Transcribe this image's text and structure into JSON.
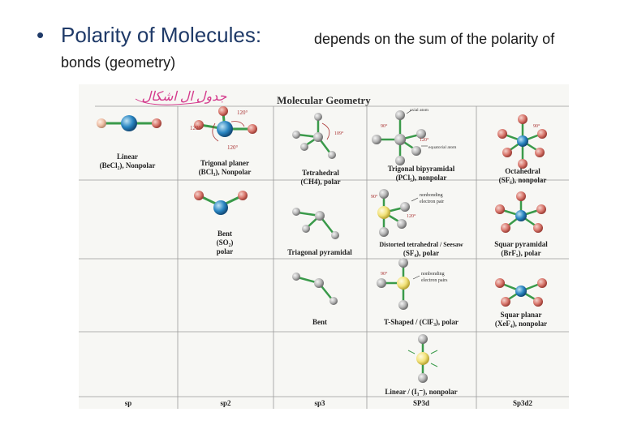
{
  "slide": {
    "bullet": "•",
    "title_main": "Polarity of Molecules:",
    "title_sub": "depends on the sum of the polarity of",
    "title_line2": "bonds (geometry)"
  },
  "figure": {
    "title": "Molecular Geometry",
    "handwritten": "جدول ال اشكال",
    "cells": [
      {
        "name": "Linear",
        "formula": "(BeCl₂), Nonpolar"
      },
      {
        "name": "Trigonal planer",
        "formula": "(BCl₃), Nonpolar"
      },
      {
        "name": "Tetrahedral",
        "formula": "(CH4), polar"
      },
      {
        "name": "Trigonal bipyramidal",
        "formula": "(PCl₅), nonpolar"
      },
      {
        "name": "Octahedral",
        "formula": "(SF₆), nonpolar"
      },
      {
        "name": "Bent",
        "formula": "(SO₂)",
        "extra": "polar"
      },
      {
        "name": "Triagonal pyramidal",
        "formula": ""
      },
      {
        "name": "Distorted tetrahedral / Seesaw",
        "formula": "(SF₄), polar"
      },
      {
        "name": "Squar pyramidal",
        "formula": "(BrF₅), polar"
      },
      {
        "name": "Bent",
        "formula": ""
      },
      {
        "name": "T-Shaped / (ClF₃), polar",
        "formula": ""
      },
      {
        "name": "Squar planar",
        "formula": "(XeF₄), nonpolar"
      },
      {
        "name": "Linear / (I₃⁻), nonpolar",
        "formula": ""
      }
    ],
    "annotations": {
      "axial_atom": "axial atom",
      "equatorial_atom": "equatorial atom",
      "nonbonding_pair": "nonbonding",
      "nonbonding_pair2": "electron pair",
      "nonbonding_pairs": "nonbonding",
      "nonbonding_pairs2": "electron pairs",
      "a120": "120°",
      "a109": "109°",
      "a90": "90°"
    },
    "hybridization": [
      "sp",
      "sp2",
      "sp3",
      "SP3d",
      "Sp3d2"
    ]
  }
}
